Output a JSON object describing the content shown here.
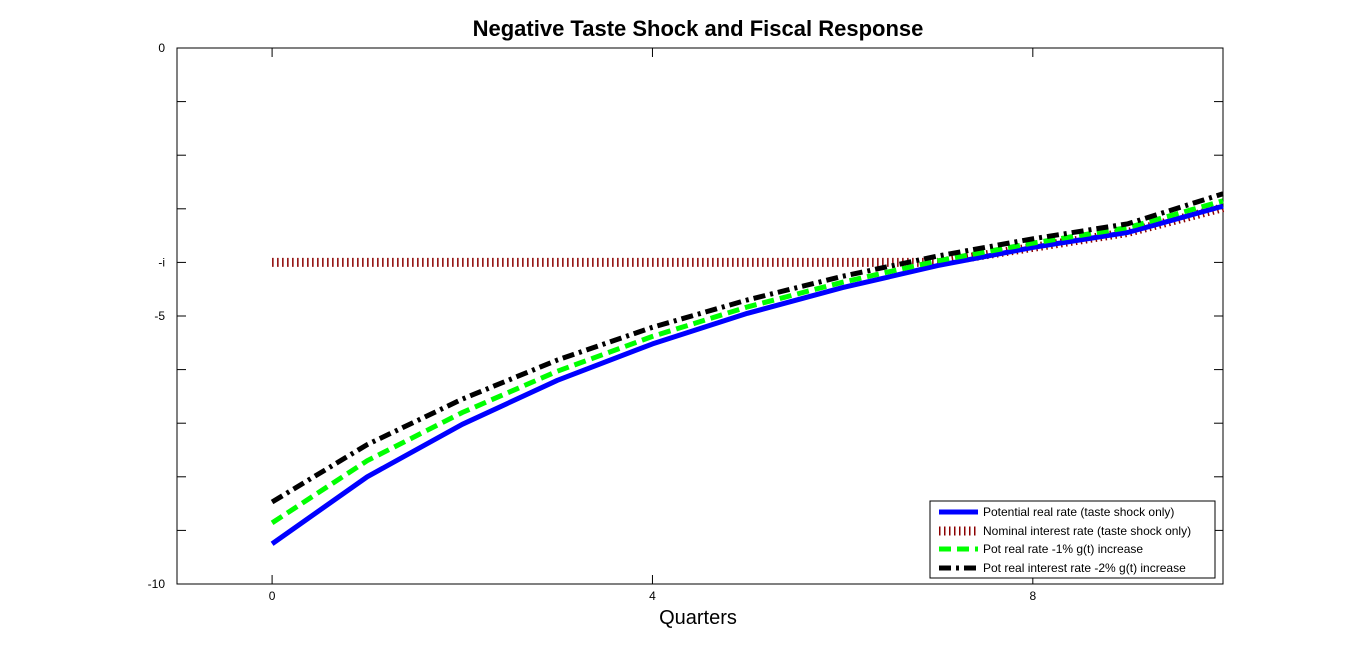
{
  "chart_data": {
    "type": "line",
    "title": "Negative Taste Shock and Fiscal Response",
    "xlabel": "Quarters",
    "ylabel": "",
    "xlim": [
      -1,
      10
    ],
    "ylim": [
      -10,
      0
    ],
    "xticks": [
      {
        "value": 0,
        "label": "0"
      },
      {
        "value": 4,
        "label": "4"
      },
      {
        "value": 8,
        "label": "8"
      }
    ],
    "yticks": [
      {
        "value": 0,
        "label": "0"
      },
      {
        "value": -1,
        "label": ""
      },
      {
        "value": -2,
        "label": ""
      },
      {
        "value": -3,
        "label": ""
      },
      {
        "value": -4,
        "label": "-i"
      },
      {
        "value": -5,
        "label": "-5"
      },
      {
        "value": -6,
        "label": ""
      },
      {
        "value": -7,
        "label": ""
      },
      {
        "value": -8,
        "label": ""
      },
      {
        "value": -9,
        "label": ""
      },
      {
        "value": -10,
        "label": "-10"
      }
    ],
    "grid": false,
    "legend_position": "bottom-right",
    "series": [
      {
        "name": "Potential real rate (taste shock only)",
        "color": "#0000ff",
        "style": "solid",
        "x": [
          0,
          1,
          2,
          3,
          4,
          5,
          6,
          7,
          8,
          9,
          10
        ],
        "y": [
          -9.25,
          -8.0,
          -7.02,
          -6.2,
          -5.52,
          -4.95,
          -4.47,
          -4.06,
          -3.72,
          -3.44,
          -2.95
        ]
      },
      {
        "name": "Nominal interest rate (taste shock only)",
        "color": "#8b0000",
        "style": "dotted",
        "x": [
          0,
          1,
          2,
          3,
          4,
          5,
          6,
          7,
          8,
          9,
          10
        ],
        "y": [
          -4.0,
          -4.0,
          -4.0,
          -4.0,
          -4.0,
          -4.0,
          -4.0,
          -4.0,
          -3.72,
          -3.44,
          -2.98
        ]
      },
      {
        "name": "Pot real rate -1% g(t) increase",
        "color": "#00ff00",
        "style": "dashed",
        "x": [
          0,
          1,
          2,
          3,
          4,
          5,
          6,
          7,
          8,
          9,
          10
        ],
        "y": [
          -8.86,
          -7.7,
          -6.8,
          -6.03,
          -5.38,
          -4.83,
          -4.37,
          -3.97,
          -3.64,
          -3.35,
          -2.85
        ]
      },
      {
        "name": "Pot real interest rate -2% g(t) increase",
        "color": "#000000",
        "style": "dashdot",
        "x": [
          0,
          1,
          2,
          3,
          4,
          5,
          6,
          7,
          8,
          9,
          10
        ],
        "y": [
          -8.47,
          -7.4,
          -6.55,
          -5.82,
          -5.21,
          -4.7,
          -4.26,
          -3.88,
          -3.56,
          -3.28,
          -2.72
        ]
      }
    ]
  }
}
